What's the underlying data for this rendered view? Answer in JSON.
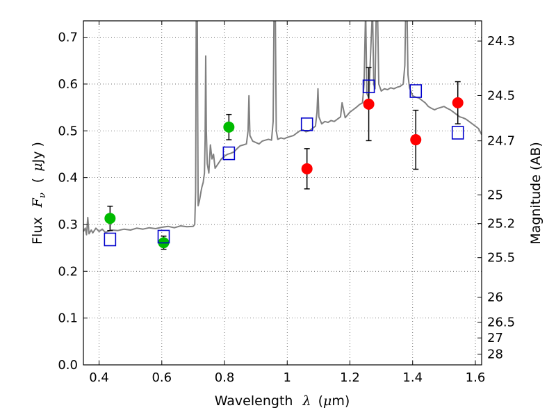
{
  "chart_data": {
    "type": "scatter",
    "xlabel_text": "Wavelength",
    "xlabel_symbol": "λ",
    "xlabel_unit_open": "(",
    "xlabel_unit_mu": "μ",
    "xlabel_unit_rest": "m)",
    "ylabel_text": "Flux",
    "ylabel_symbol": "F",
    "ylabel_sub": "ν",
    "ylabel_unit_open": "(",
    "ylabel_unit_mu": "μ",
    "ylabel_unit_rest": "Jy )",
    "y2label": "Magnitude (AB)",
    "xlim": [
      0.35,
      1.62
    ],
    "ylim": [
      0.0,
      0.735
    ],
    "grid": true,
    "x_ticks": [
      {
        "v": 0.4,
        "label": "0.4"
      },
      {
        "v": 0.6,
        "label": "0.6"
      },
      {
        "v": 0.8,
        "label": "0.8"
      },
      {
        "v": 1.0,
        "label": "1"
      },
      {
        "v": 1.2,
        "label": "1.2"
      },
      {
        "v": 1.4,
        "label": "1.4"
      },
      {
        "v": 1.6,
        "label": "1.6"
      }
    ],
    "y_ticks": [
      {
        "v": 0.0,
        "label": "0.0"
      },
      {
        "v": 0.1,
        "label": "0.1"
      },
      {
        "v": 0.2,
        "label": "0.2"
      },
      {
        "v": 0.3,
        "label": "0.3"
      },
      {
        "v": 0.4,
        "label": "0.4"
      },
      {
        "v": 0.5,
        "label": "0.5"
      },
      {
        "v": 0.6,
        "label": "0.6"
      },
      {
        "v": 0.7,
        "label": "0.7"
      }
    ],
    "mag_ticks": [
      {
        "mag": 24.3,
        "label": "24.3"
      },
      {
        "mag": 24.5,
        "label": "24.5"
      },
      {
        "mag": 24.7,
        "label": "24.7"
      },
      {
        "mag": 25.0,
        "label": "25"
      },
      {
        "mag": 25.2,
        "label": "25.2"
      },
      {
        "mag": 25.5,
        "label": "25.5"
      },
      {
        "mag": 26.0,
        "label": "26"
      },
      {
        "mag": 26.5,
        "label": "26.5"
      },
      {
        "mag": 27.0,
        "label": "27"
      },
      {
        "mag": 28.0,
        "label": "28"
      }
    ],
    "colors": {
      "spectrum": "#808080",
      "green": "#00bb00",
      "red": "#ff0000",
      "model": "#0000cc",
      "errorbar": "#000000",
      "grid": "#555555"
    },
    "series": [
      {
        "marker": "circle",
        "color": "green",
        "points": [
          {
            "x": 0.435,
            "y": 0.313,
            "err": 0.026
          },
          {
            "x": 0.606,
            "y": 0.261,
            "err": 0.014
          },
          {
            "x": 0.814,
            "y": 0.508,
            "err": 0.027
          }
        ]
      },
      {
        "marker": "circle",
        "color": "red",
        "points": [
          {
            "x": 1.063,
            "y": 0.419,
            "err": 0.043
          },
          {
            "x": 1.26,
            "y": 0.557,
            "err": 0.078
          },
          {
            "x": 1.41,
            "y": 0.481,
            "err": 0.063
          },
          {
            "x": 1.544,
            "y": 0.56,
            "err": 0.045
          }
        ]
      },
      {
        "marker": "square",
        "color": "model",
        "points": [
          {
            "x": 0.435,
            "y": 0.268
          },
          {
            "x": 0.606,
            "y": 0.274
          },
          {
            "x": 0.814,
            "y": 0.452
          },
          {
            "x": 1.063,
            "y": 0.514
          },
          {
            "x": 1.26,
            "y": 0.595
          },
          {
            "x": 1.41,
            "y": 0.585
          },
          {
            "x": 1.544,
            "y": 0.496
          }
        ]
      }
    ],
    "spectrum": [
      [
        0.35,
        0.285
      ],
      [
        0.356,
        0.292
      ],
      [
        0.36,
        0.278
      ],
      [
        0.364,
        0.315
      ],
      [
        0.368,
        0.28
      ],
      [
        0.375,
        0.288
      ],
      [
        0.38,
        0.282
      ],
      [
        0.39,
        0.292
      ],
      [
        0.4,
        0.285
      ],
      [
        0.41,
        0.29
      ],
      [
        0.42,
        0.283
      ],
      [
        0.44,
        0.288
      ],
      [
        0.46,
        0.287
      ],
      [
        0.48,
        0.29
      ],
      [
        0.5,
        0.288
      ],
      [
        0.52,
        0.292
      ],
      [
        0.54,
        0.29
      ],
      [
        0.56,
        0.293
      ],
      [
        0.58,
        0.291
      ],
      [
        0.6,
        0.294
      ],
      [
        0.62,
        0.296
      ],
      [
        0.64,
        0.293
      ],
      [
        0.66,
        0.297
      ],
      [
        0.68,
        0.295
      ],
      [
        0.7,
        0.296
      ],
      [
        0.705,
        0.3
      ],
      [
        0.708,
        0.37
      ],
      [
        0.71,
        0.76
      ],
      [
        0.713,
        0.76
      ],
      [
        0.716,
        0.34
      ],
      [
        0.72,
        0.35
      ],
      [
        0.725,
        0.37
      ],
      [
        0.728,
        0.38
      ],
      [
        0.732,
        0.39
      ],
      [
        0.736,
        0.41
      ],
      [
        0.738,
        0.48
      ],
      [
        0.74,
        0.66
      ],
      [
        0.742,
        0.5
      ],
      [
        0.745,
        0.43
      ],
      [
        0.75,
        0.41
      ],
      [
        0.755,
        0.47
      ],
      [
        0.76,
        0.44
      ],
      [
        0.765,
        0.45
      ],
      [
        0.77,
        0.42
      ],
      [
        0.78,
        0.43
      ],
      [
        0.79,
        0.44
      ],
      [
        0.8,
        0.446
      ],
      [
        0.81,
        0.45
      ],
      [
        0.82,
        0.452
      ],
      [
        0.83,
        0.455
      ],
      [
        0.84,
        0.462
      ],
      [
        0.85,
        0.468
      ],
      [
        0.86,
        0.47
      ],
      [
        0.87,
        0.472
      ],
      [
        0.875,
        0.5
      ],
      [
        0.878,
        0.575
      ],
      [
        0.881,
        0.49
      ],
      [
        0.89,
        0.478
      ],
      [
        0.9,
        0.475
      ],
      [
        0.91,
        0.472
      ],
      [
        0.92,
        0.478
      ],
      [
        0.93,
        0.48
      ],
      [
        0.94,
        0.482
      ],
      [
        0.95,
        0.48
      ],
      [
        0.955,
        0.52
      ],
      [
        0.958,
        0.76
      ],
      [
        0.962,
        0.76
      ],
      [
        0.965,
        0.5
      ],
      [
        0.97,
        0.482
      ],
      [
        0.98,
        0.485
      ],
      [
        0.99,
        0.483
      ],
      [
        1.0,
        0.486
      ],
      [
        1.01,
        0.488
      ],
      [
        1.02,
        0.49
      ],
      [
        1.03,
        0.495
      ],
      [
        1.04,
        0.5
      ],
      [
        1.05,
        0.502
      ],
      [
        1.06,
        0.498
      ],
      [
        1.07,
        0.5
      ],
      [
        1.08,
        0.505
      ],
      [
        1.09,
        0.51
      ],
      [
        1.095,
        0.54
      ],
      [
        1.098,
        0.59
      ],
      [
        1.101,
        0.53
      ],
      [
        1.11,
        0.515
      ],
      [
        1.12,
        0.52
      ],
      [
        1.13,
        0.518
      ],
      [
        1.14,
        0.522
      ],
      [
        1.15,
        0.52
      ],
      [
        1.16,
        0.525
      ],
      [
        1.17,
        0.53
      ],
      [
        1.175,
        0.56
      ],
      [
        1.178,
        0.55
      ],
      [
        1.185,
        0.528
      ],
      [
        1.2,
        0.54
      ],
      [
        1.21,
        0.545
      ],
      [
        1.22,
        0.55
      ],
      [
        1.23,
        0.556
      ],
      [
        1.24,
        0.56
      ],
      [
        1.245,
        0.6
      ],
      [
        1.25,
        0.76
      ],
      [
        1.254,
        0.58
      ],
      [
        1.26,
        0.57
      ],
      [
        1.268,
        0.7
      ],
      [
        1.272,
        0.76
      ],
      [
        1.276,
        0.6
      ],
      [
        1.28,
        0.59
      ],
      [
        1.284,
        0.76
      ],
      [
        1.288,
        0.76
      ],
      [
        1.292,
        0.6
      ],
      [
        1.3,
        0.585
      ],
      [
        1.31,
        0.59
      ],
      [
        1.32,
        0.588
      ],
      [
        1.33,
        0.592
      ],
      [
        1.34,
        0.59
      ],
      [
        1.35,
        0.593
      ],
      [
        1.36,
        0.595
      ],
      [
        1.37,
        0.6
      ],
      [
        1.375,
        0.64
      ],
      [
        1.378,
        0.76
      ],
      [
        1.382,
        0.76
      ],
      [
        1.385,
        0.62
      ],
      [
        1.39,
        0.592
      ],
      [
        1.4,
        0.575
      ],
      [
        1.41,
        0.572
      ],
      [
        1.42,
        0.57
      ],
      [
        1.43,
        0.565
      ],
      [
        1.44,
        0.56
      ],
      [
        1.45,
        0.552
      ],
      [
        1.46,
        0.548
      ],
      [
        1.47,
        0.545
      ],
      [
        1.48,
        0.548
      ],
      [
        1.49,
        0.55
      ],
      [
        1.5,
        0.552
      ],
      [
        1.51,
        0.548
      ],
      [
        1.52,
        0.545
      ],
      [
        1.53,
        0.54
      ],
      [
        1.54,
        0.535
      ],
      [
        1.55,
        0.53
      ],
      [
        1.56,
        0.528
      ],
      [
        1.57,
        0.525
      ],
      [
        1.58,
        0.52
      ],
      [
        1.59,
        0.515
      ],
      [
        1.6,
        0.51
      ],
      [
        1.61,
        0.505
      ],
      [
        1.62,
        0.492
      ]
    ]
  }
}
